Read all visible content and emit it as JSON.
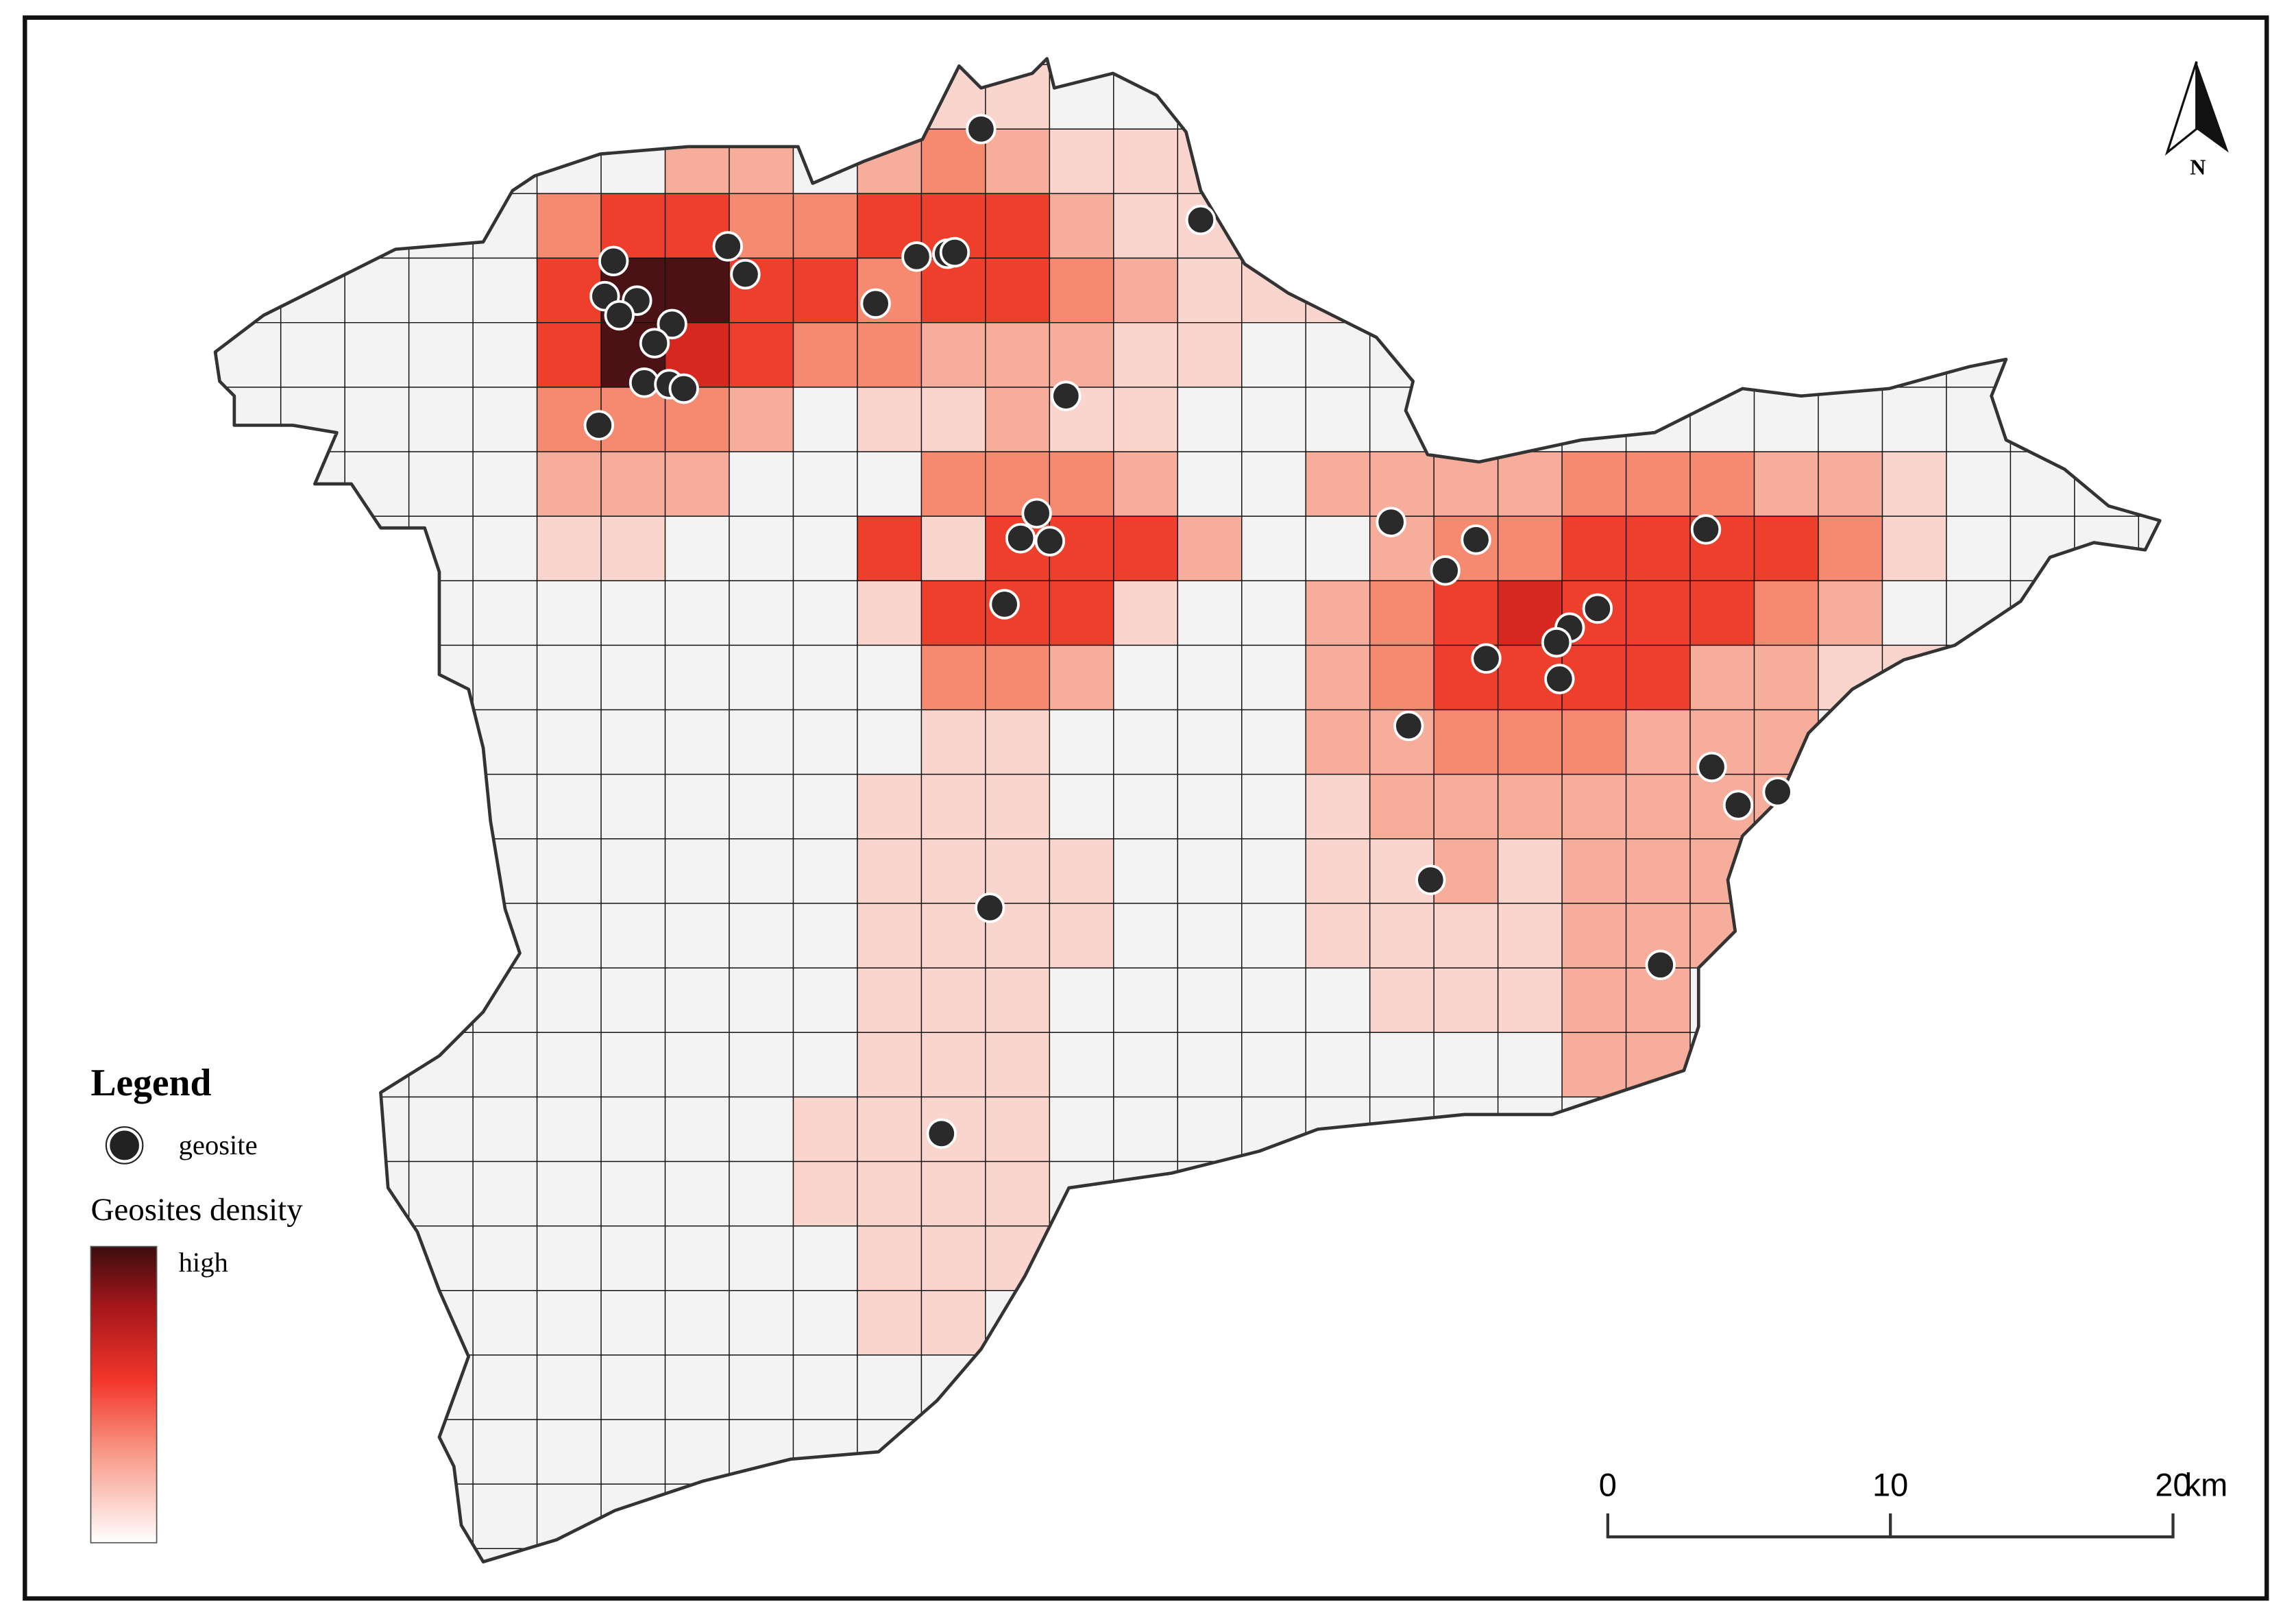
{
  "legend": {
    "title": "Legend",
    "items": [
      {
        "label": "geosite"
      }
    ],
    "density_title": "Geosites density",
    "density_high": "high"
  },
  "scale_bar": {
    "ticks": [
      0,
      10,
      20
    ],
    "unit": "km"
  },
  "north_arrow": {
    "label": "N"
  }
}
